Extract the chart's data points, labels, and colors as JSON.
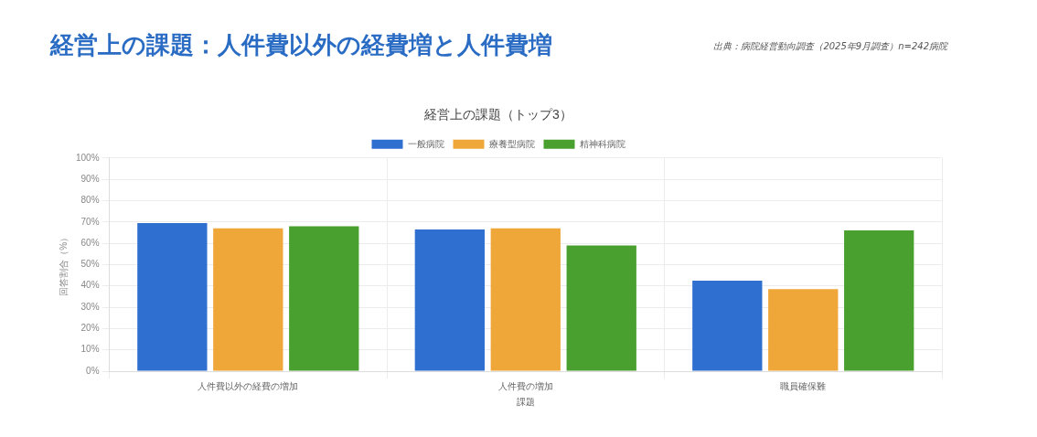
{
  "chart_data": {
    "type": "bar",
    "title": "経営上の課題（トップ3）",
    "subtitle": "経営上の課題：人件費以外の経費増と人件費増",
    "annotations": [
      "出典：病院経営動向調査（2025年9月調査）n=242病院"
    ],
    "xlabel": "課題",
    "ylabel": "回答割合（%）",
    "categories": [
      "人件費以外の経費の増加",
      "人件費の増加",
      "職員確保難"
    ],
    "series": [
      {
        "name": "一般病院",
        "color": "#2f6fd0",
        "values": [
          69.5,
          66.5,
          42.5
        ]
      },
      {
        "name": "療養型病院",
        "color": "#efa73a",
        "values": [
          67,
          67,
          38.5
        ]
      },
      {
        "name": "精神科病院",
        "color": "#49a02e",
        "values": [
          68,
          59,
          66
        ]
      }
    ],
    "ylim": [
      0,
      100
    ],
    "yticks": [
      {
        "value": 0,
        "label": "0%"
      },
      {
        "value": 10,
        "label": "10%"
      },
      {
        "value": 20,
        "label": "20%"
      },
      {
        "value": 30,
        "label": "30%"
      },
      {
        "value": 40,
        "label": "40%"
      },
      {
        "value": 50,
        "label": "50%"
      },
      {
        "value": 60,
        "label": "60%"
      },
      {
        "value": 70,
        "label": "70%"
      },
      {
        "value": 80,
        "label": "80%"
      },
      {
        "value": 90,
        "label": "90%"
      },
      {
        "value": 100,
        "label": "100%"
      }
    ],
    "grid": true,
    "legend": "top"
  }
}
